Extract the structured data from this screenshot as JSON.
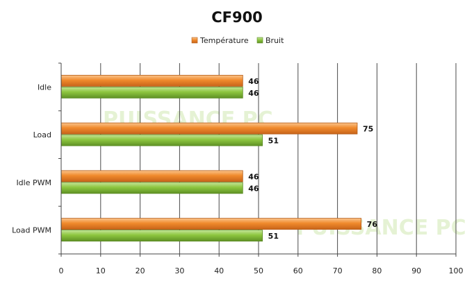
{
  "chart_data": {
    "type": "bar",
    "orientation": "horizontal",
    "title": "CF900",
    "categories": [
      "Idle",
      "Load",
      "Idle PWM",
      "Load PWM"
    ],
    "series": [
      {
        "name": "Température",
        "values": [
          46,
          75,
          46,
          76
        ],
        "color": "#f08a2c"
      },
      {
        "name": "Bruit",
        "values": [
          46,
          51,
          46,
          51
        ],
        "color": "#8dc63f"
      }
    ],
    "xlim": [
      0,
      100
    ],
    "xticks": [
      0,
      10,
      20,
      30,
      40,
      50,
      60,
      70,
      80,
      90,
      100
    ],
    "grid": true,
    "legend": "top",
    "data_labels": true
  },
  "watermark": "PUISSANCE PC"
}
